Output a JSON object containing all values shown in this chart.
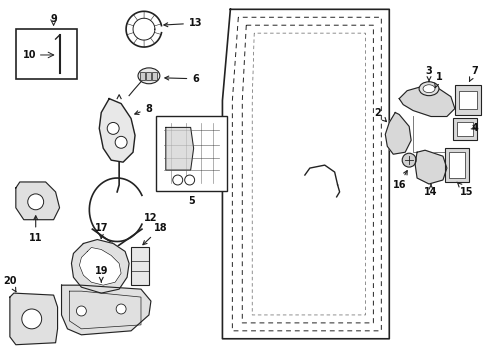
{
  "bg_color": "#ffffff",
  "fig_width": 4.89,
  "fig_height": 3.6,
  "dpi": 100,
  "lc": "#222222"
}
